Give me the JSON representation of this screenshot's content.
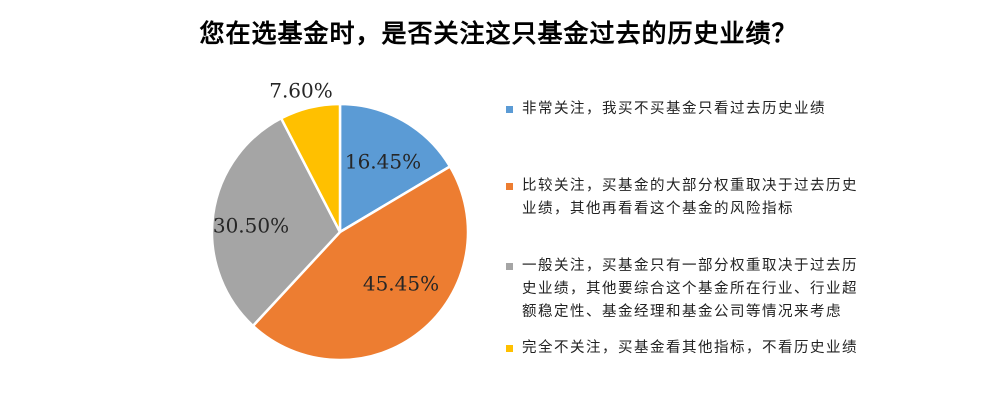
{
  "chart_data": {
    "type": "pie",
    "title": "您在选基金时，是否关注这只基金过去的历史业绩？",
    "slices": [
      {
        "label": "非常关注，我买不买基金只看过去历史业绩",
        "value": 16.45,
        "value_label": "16.45%",
        "color": "#5b9bd5"
      },
      {
        "label": "比较关注，买基金的大部分权重取决于过去历史\n业绩，其他再看看这个基金的风险指标",
        "value": 45.45,
        "value_label": "45.45%",
        "color": "#ed7d31"
      },
      {
        "label": "一般关注，买基金只有一部分权重取决于过去历\n史业绩，其他要综合这个基金所在行业、行业超\n额稳定性、基金经理和基金公司等情况来考虑",
        "value": 30.5,
        "value_label": "30.50%",
        "color": "#a5a5a5"
      },
      {
        "label": "完全不关注，买基金看其他指标，不看历史业绩",
        "value": 7.6,
        "value_label": "7.60%",
        "color": "#ffc000"
      }
    ],
    "legend_position": "right",
    "start_angle": "top",
    "direction": "clockwise"
  }
}
